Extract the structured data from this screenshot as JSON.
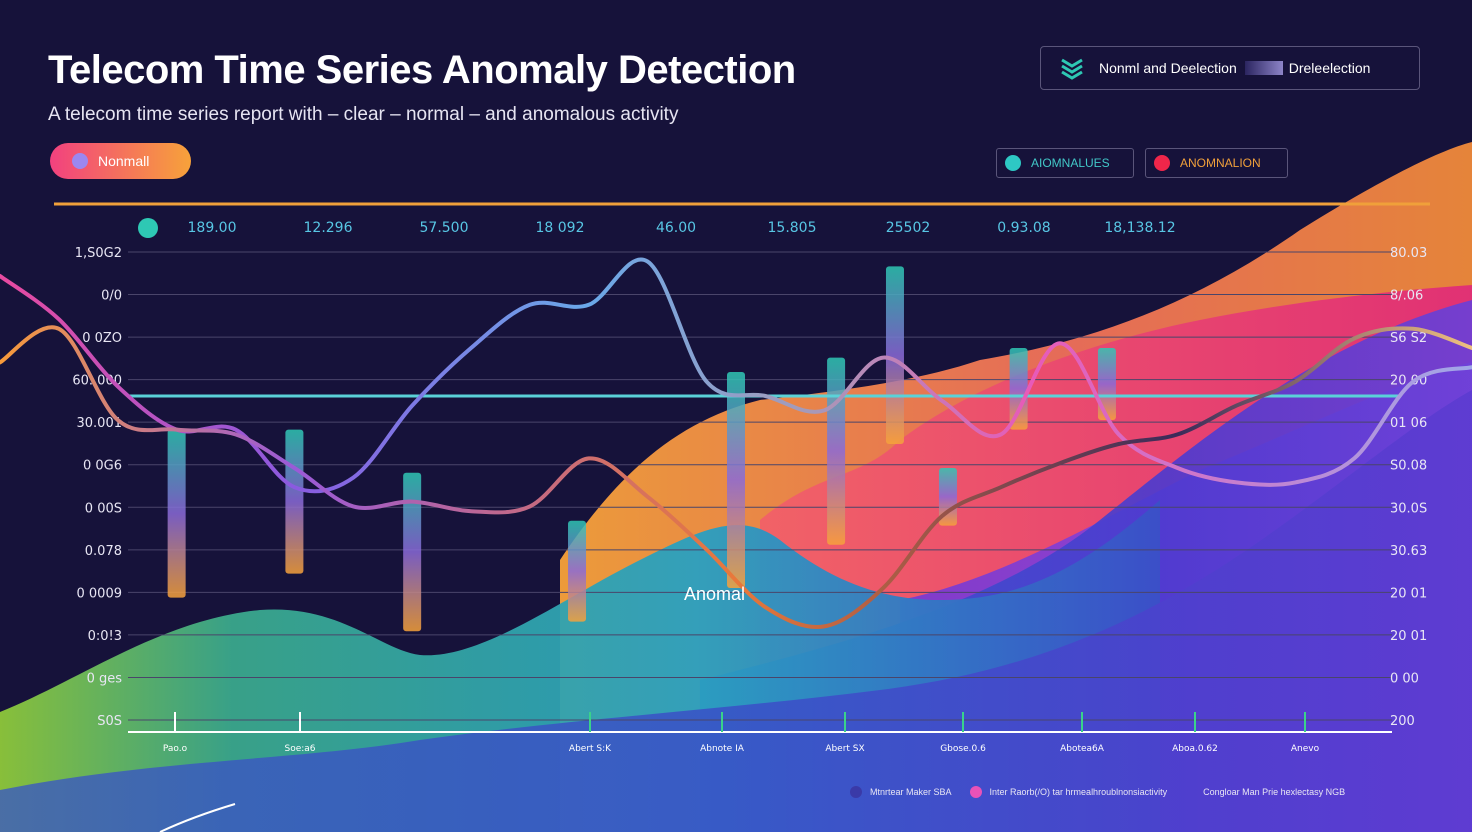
{
  "title": "Telecom Time Series Anomaly Detection",
  "subtitle": "A telecom time series report with – clear – normal –  and anomalous activity",
  "normal_badge": "Nonmall",
  "top_legend": {
    "left_label": "Nonml and Deelection",
    "right_label": "Dreleelection"
  },
  "chips": [
    {
      "label": "AIOMNALUES",
      "dot_color": "#2ec8c4"
    },
    {
      "label": "ANOMNALION",
      "dot_color": "#f0264a"
    }
  ],
  "annotation": "Anomal",
  "bottom_legend": {
    "items": [
      {
        "label": "Mtnrtear Maker SBA",
        "color": "#3a3aa8"
      },
      {
        "label": "Inter Raorb(/O) tar hrmealhroublnonsiactivity",
        "color": "#e852b8"
      }
    ],
    "note": "Congloar Man Prie hexlectasy NGB"
  },
  "chart_data": {
    "type": "line",
    "title": "Telecom Time Series Anomaly Detection",
    "left_ticks": [
      "1,S0G2",
      "0/0",
      "0 0ZO",
      "60. 000",
      "30.001",
      "0 0G6",
      "0 00S",
      "0.078",
      "0 0009",
      "0:0!3",
      "0 ges",
      "S0S"
    ],
    "right_ticks": [
      "80.03",
      "8/.06",
      "S6 S2",
      "20 00",
      "01 06",
      "S0.08",
      "30.0S",
      "30.63",
      "20 01",
      "20 01",
      "0 00",
      "200"
    ],
    "top_labels": [
      "189.00",
      "12.296",
      "57.500",
      "18 092",
      "46.00",
      "15.805",
      "25502",
      "0.93.08",
      "18,138.12"
    ],
    "x_ticks": [
      "Pao.o",
      "Soe:a6",
      "Abert S:K",
      "Abnote IA",
      "Abert SX",
      "Gbose.0.6",
      "Abotea6A",
      "Aboa.0.62",
      "Anevo"
    ],
    "ylim": [
      0,
      100
    ],
    "threshold": 70,
    "series": [
      {
        "values": [
          95,
          86,
          72,
          63,
          63,
          51,
          53,
          68,
          80,
          89,
          89,
          98,
          73,
          70,
          67,
          78,
          69,
          62,
          81,
          62,
          55,
          52,
          52,
          57,
          73,
          76
        ]
      },
      {
        "values": [
          77,
          84,
          65,
          63,
          62,
          55,
          47,
          48,
          46,
          47,
          57,
          49,
          38,
          26,
          22,
          30,
          45,
          51,
          56,
          60,
          62,
          68,
          73,
          82,
          84,
          80
        ]
      }
    ],
    "anomalies": [
      {
        "x": 3.0,
        "low": 28,
        "high": 63
      },
      {
        "x": 5.0,
        "low": 33,
        "high": 63
      },
      {
        "x": 7.0,
        "low": 21,
        "high": 54
      },
      {
        "x": 9.8,
        "low": 23,
        "high": 44
      },
      {
        "x": 12.5,
        "low": 30,
        "high": 75
      },
      {
        "x": 14.2,
        "low": 39,
        "high": 78
      },
      {
        "x": 15.2,
        "low": 60,
        "high": 97
      },
      {
        "x": 16.1,
        "low": 43,
        "high": 55
      },
      {
        "x": 17.3,
        "low": 63,
        "high": 80
      },
      {
        "x": 18.8,
        "low": 65,
        "high": 80
      }
    ]
  }
}
